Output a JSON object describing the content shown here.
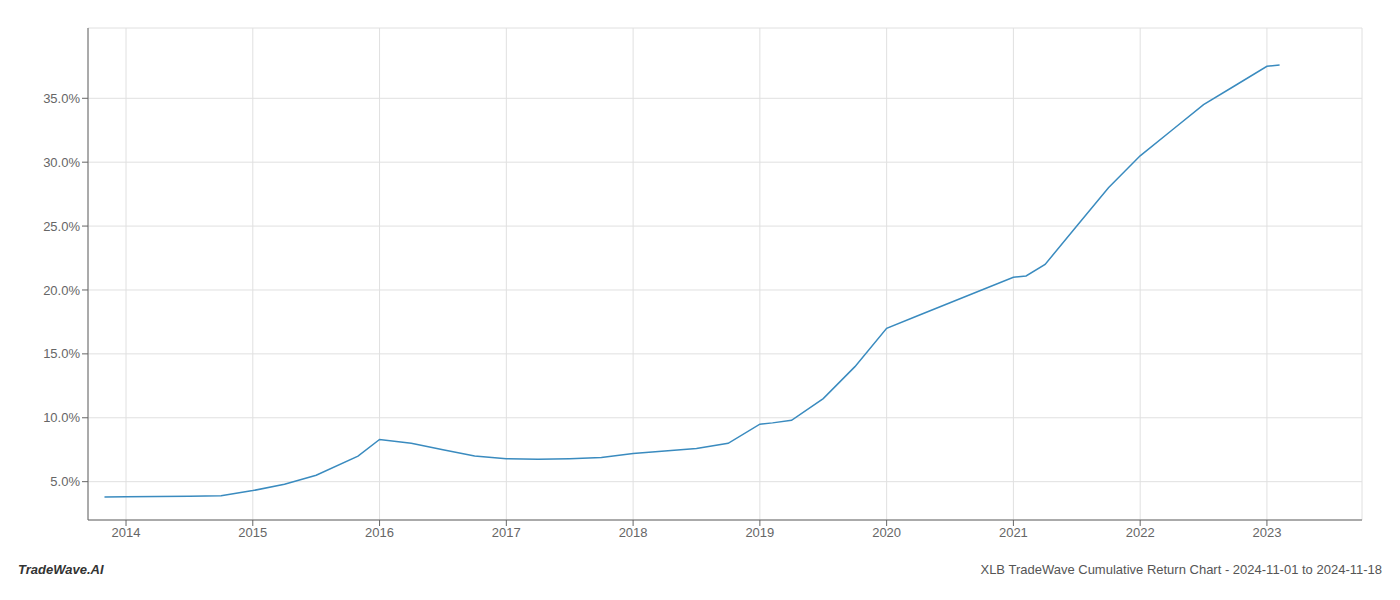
{
  "chart_data": {
    "type": "line",
    "x": [
      2013.83,
      2014.0,
      2014.25,
      2014.5,
      2014.75,
      2015.0,
      2015.25,
      2015.5,
      2015.83,
      2016.0,
      2016.25,
      2016.5,
      2016.75,
      2017.0,
      2017.25,
      2017.5,
      2017.75,
      2018.0,
      2018.25,
      2018.5,
      2018.75,
      2019.0,
      2019.1,
      2019.25,
      2019.5,
      2019.75,
      2020.0,
      2020.25,
      2020.5,
      2020.75,
      2021.0,
      2021.1,
      2021.25,
      2021.5,
      2021.75,
      2022.0,
      2022.25,
      2022.5,
      2022.75,
      2023.0,
      2023.1
    ],
    "values": [
      3.8,
      3.82,
      3.83,
      3.85,
      3.9,
      4.3,
      4.8,
      5.5,
      7.0,
      8.3,
      8.0,
      7.5,
      7.0,
      6.8,
      6.75,
      6.8,
      6.9,
      7.2,
      7.4,
      7.6,
      8.0,
      9.5,
      9.6,
      9.8,
      11.5,
      14.0,
      17.0,
      18.0,
      19.0,
      20.0,
      21.0,
      21.1,
      22.0,
      25.0,
      28.0,
      30.5,
      32.5,
      34.5,
      36.0,
      37.5,
      37.6
    ],
    "color": "#3a8bbf",
    "xlim": [
      2013.7,
      2023.75
    ],
    "xticks": [
      2014,
      2015,
      2016,
      2017,
      2018,
      2019,
      2020,
      2021,
      2022,
      2023
    ],
    "ylim": [
      2.0,
      40.5
    ],
    "yticks": [
      {
        "value": 5.0,
        "label": "5.0%"
      },
      {
        "value": 10.0,
        "label": "10.0%"
      },
      {
        "value": 15.0,
        "label": "15.0%"
      },
      {
        "value": 20.0,
        "label": "20.0%"
      },
      {
        "value": 25.0,
        "label": "25.0%"
      },
      {
        "value": 30.0,
        "label": "30.0%"
      },
      {
        "value": 35.0,
        "label": "35.0%"
      }
    ],
    "grid": true,
    "annotations": [
      "TradeWave.AI",
      "XLB TradeWave Cumulative Return Chart - 2024-11-01 to 2024-11-18"
    ]
  }
}
